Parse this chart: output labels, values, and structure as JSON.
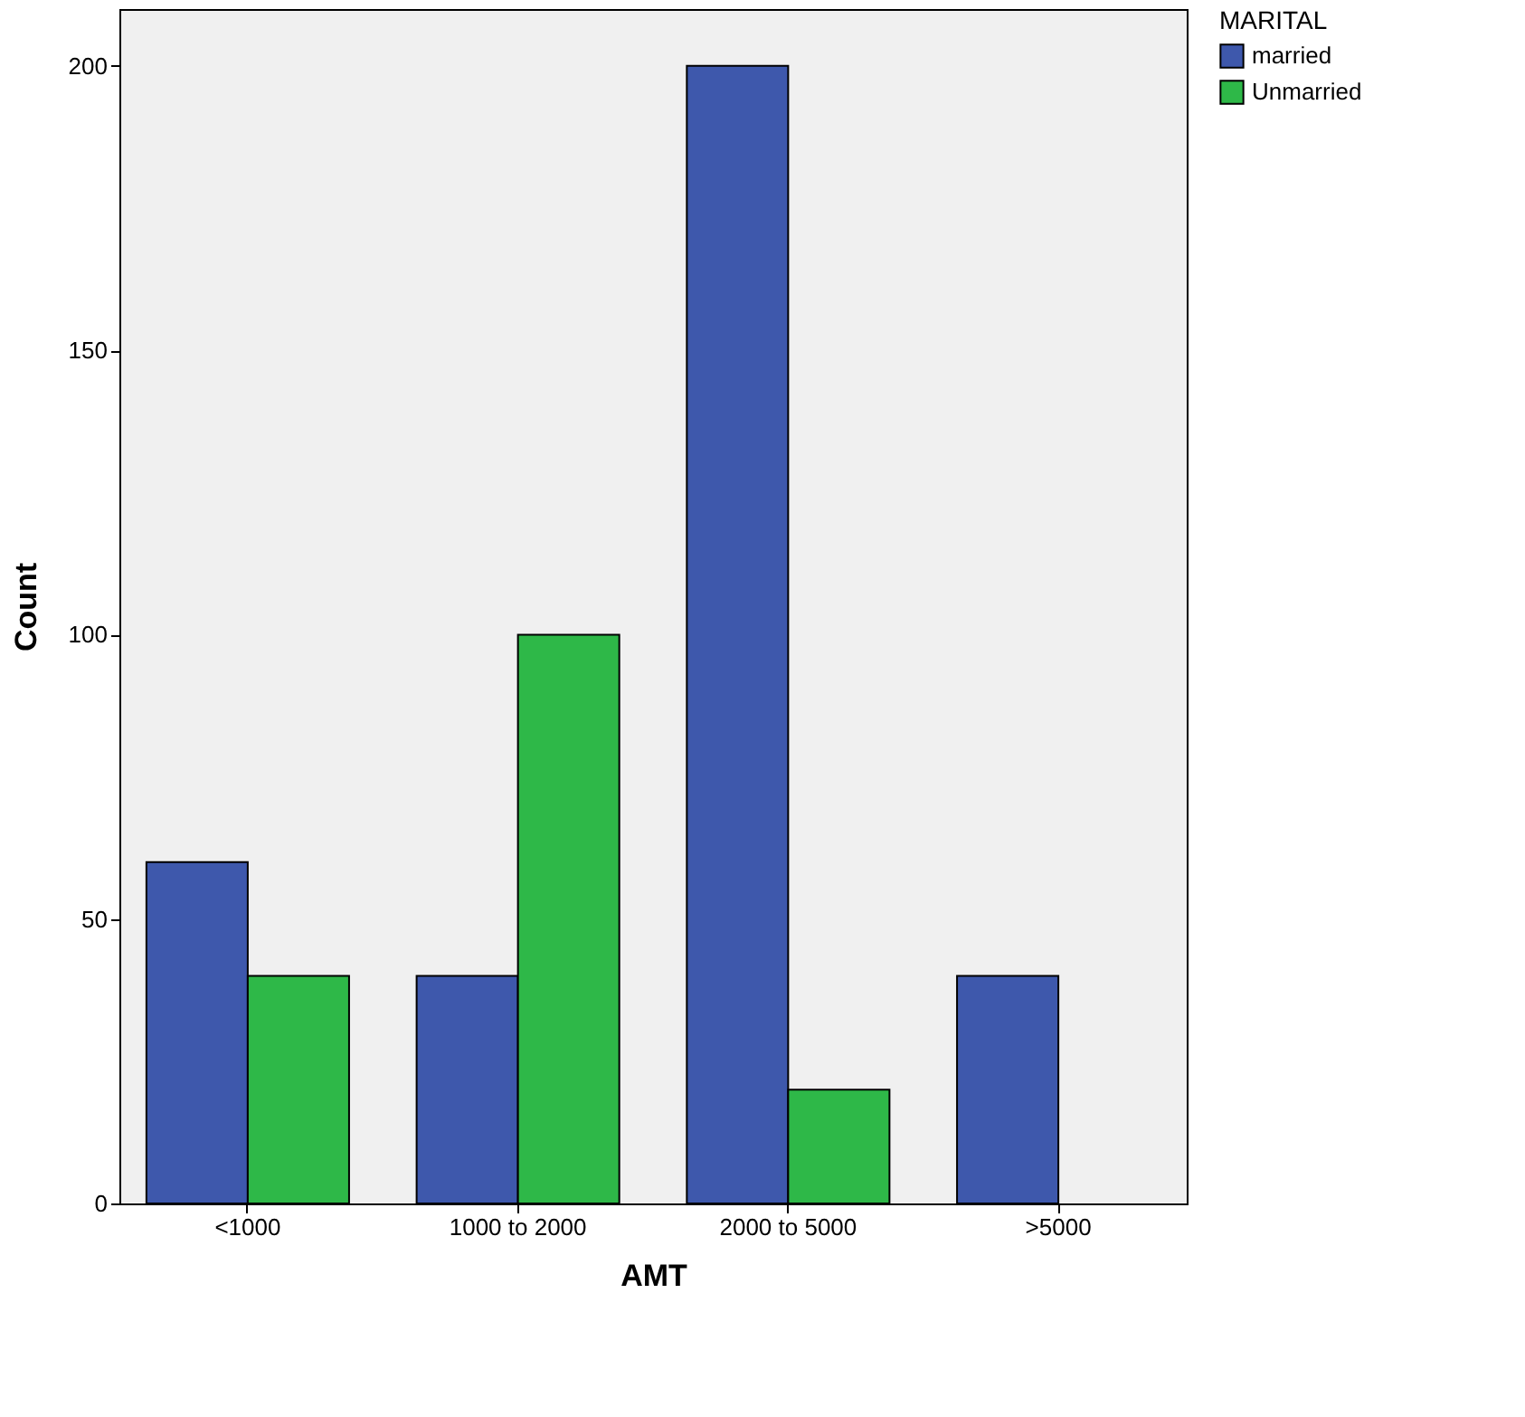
{
  "chart_data": {
    "type": "bar",
    "xlabel": "AMT",
    "ylabel": "Count",
    "legend_title": "MARITAL",
    "categories": [
      "<1000",
      "1000 to 2000",
      "2000 to 5000",
      ">5000"
    ],
    "series": [
      {
        "name": "married",
        "color": "#3e58ac",
        "values": [
          60,
          40,
          200,
          40
        ]
      },
      {
        "name": "Unmarried",
        "color": "#2eb848",
        "values": [
          40,
          100,
          20,
          null
        ]
      }
    ],
    "ylim": [
      0,
      210
    ],
    "yticks": [
      0,
      50,
      100,
      150,
      200
    ],
    "grid": false,
    "legend": "top right"
  }
}
